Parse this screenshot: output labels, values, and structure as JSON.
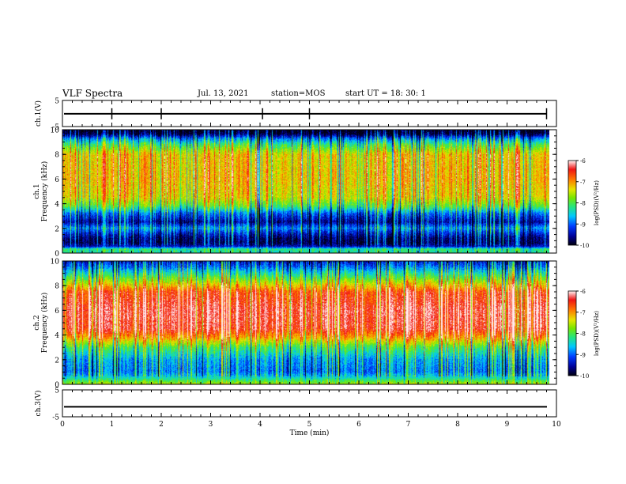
{
  "header": {
    "title": "VLF Spectra",
    "date": "Jul. 13, 2021",
    "station": "station=MOS",
    "start_ut": "start UT =  18: 30: 1"
  },
  "chart_data": [
    {
      "type": "line",
      "panel": "ch1-waveform",
      "ylabel": "ch.1(V)",
      "ylim": [
        -5,
        5
      ],
      "ytick_labels": [
        "-5",
        "5"
      ],
      "xlim": [
        0,
        10
      ],
      "series": [
        {
          "values": [
            -0.1,
            -0.1
          ]
        }
      ],
      "spikes_min": [
        1.0,
        2.0,
        4.05,
        5.0,
        9.8
      ]
    },
    {
      "type": "heatmap",
      "panel": "ch1-spectrogram",
      "ylabel": "ch.1\nFrequency (kHz)",
      "ylim": [
        0,
        10
      ],
      "ytick_labels": [
        "0",
        "2",
        "4",
        "6",
        "8",
        "10"
      ],
      "xlim": [
        0,
        9.85
      ],
      "colorbar": {
        "label": "log(PSD)(V²/Hz)",
        "range": [
          -10,
          -6
        ],
        "tick_labels": [
          "-10",
          "-9",
          "-8",
          "-7",
          "-6"
        ]
      },
      "profile": [
        {
          "f": 0.0,
          "v": -8.3
        },
        {
          "f": 0.3,
          "v": -8.2
        },
        {
          "f": 0.5,
          "v": -9.4
        },
        {
          "f": 0.8,
          "v": -9.8
        },
        {
          "f": 1.2,
          "v": -9.7
        },
        {
          "f": 1.6,
          "v": -9.3
        },
        {
          "f": 2.0,
          "v": -8.8
        },
        {
          "f": 2.5,
          "v": -9.6
        },
        {
          "f": 3.2,
          "v": -9.0
        },
        {
          "f": 3.8,
          "v": -8.0
        },
        {
          "f": 4.5,
          "v": -7.4
        },
        {
          "f": 6.0,
          "v": -7.2
        },
        {
          "f": 8.0,
          "v": -7.3
        },
        {
          "f": 8.8,
          "v": -8.1
        },
        {
          "f": 9.3,
          "v": -8.9
        },
        {
          "f": 9.7,
          "v": -9.9
        },
        {
          "f": 10.0,
          "v": -10.0
        }
      ]
    },
    {
      "type": "heatmap",
      "panel": "ch2-spectrogram",
      "ylabel": "ch.2\nFrequency (kHz)",
      "ylim": [
        0,
        10
      ],
      "ytick_labels": [
        "0",
        "2",
        "4",
        "6",
        "8",
        "10"
      ],
      "xlim": [
        0,
        9.85
      ],
      "colorbar": {
        "label": "log(PSD)(V²/Hz)",
        "range": [
          -10,
          -6
        ],
        "tick_labels": [
          "-10",
          "-9",
          "-8",
          "-7",
          "-6"
        ]
      },
      "profile": [
        {
          "f": 0.0,
          "v": -7.6
        },
        {
          "f": 0.5,
          "v": -8.4
        },
        {
          "f": 1.0,
          "v": -8.9
        },
        {
          "f": 2.0,
          "v": -8.7
        },
        {
          "f": 3.0,
          "v": -8.0
        },
        {
          "f": 3.8,
          "v": -7.0
        },
        {
          "f": 4.5,
          "v": -6.4
        },
        {
          "f": 6.0,
          "v": -6.3
        },
        {
          "f": 7.5,
          "v": -6.6
        },
        {
          "f": 8.2,
          "v": -7.4
        },
        {
          "f": 9.0,
          "v": -8.3
        },
        {
          "f": 9.6,
          "v": -9.0
        },
        {
          "f": 10.0,
          "v": -9.3
        }
      ]
    },
    {
      "type": "line",
      "panel": "ch3-waveform",
      "ylabel": "ch.3(V)",
      "ylim": [
        -5,
        5
      ],
      "ytick_labels": [
        "-5",
        "5"
      ],
      "xlim": [
        0,
        10
      ],
      "xlabel": "Time (min)",
      "xtick_labels": [
        "0",
        "1",
        "2",
        "3",
        "4",
        "5",
        "6",
        "7",
        "8",
        "9",
        "10"
      ],
      "series": [
        {
          "values": [
            -1.3,
            -1.3
          ]
        }
      ]
    }
  ]
}
